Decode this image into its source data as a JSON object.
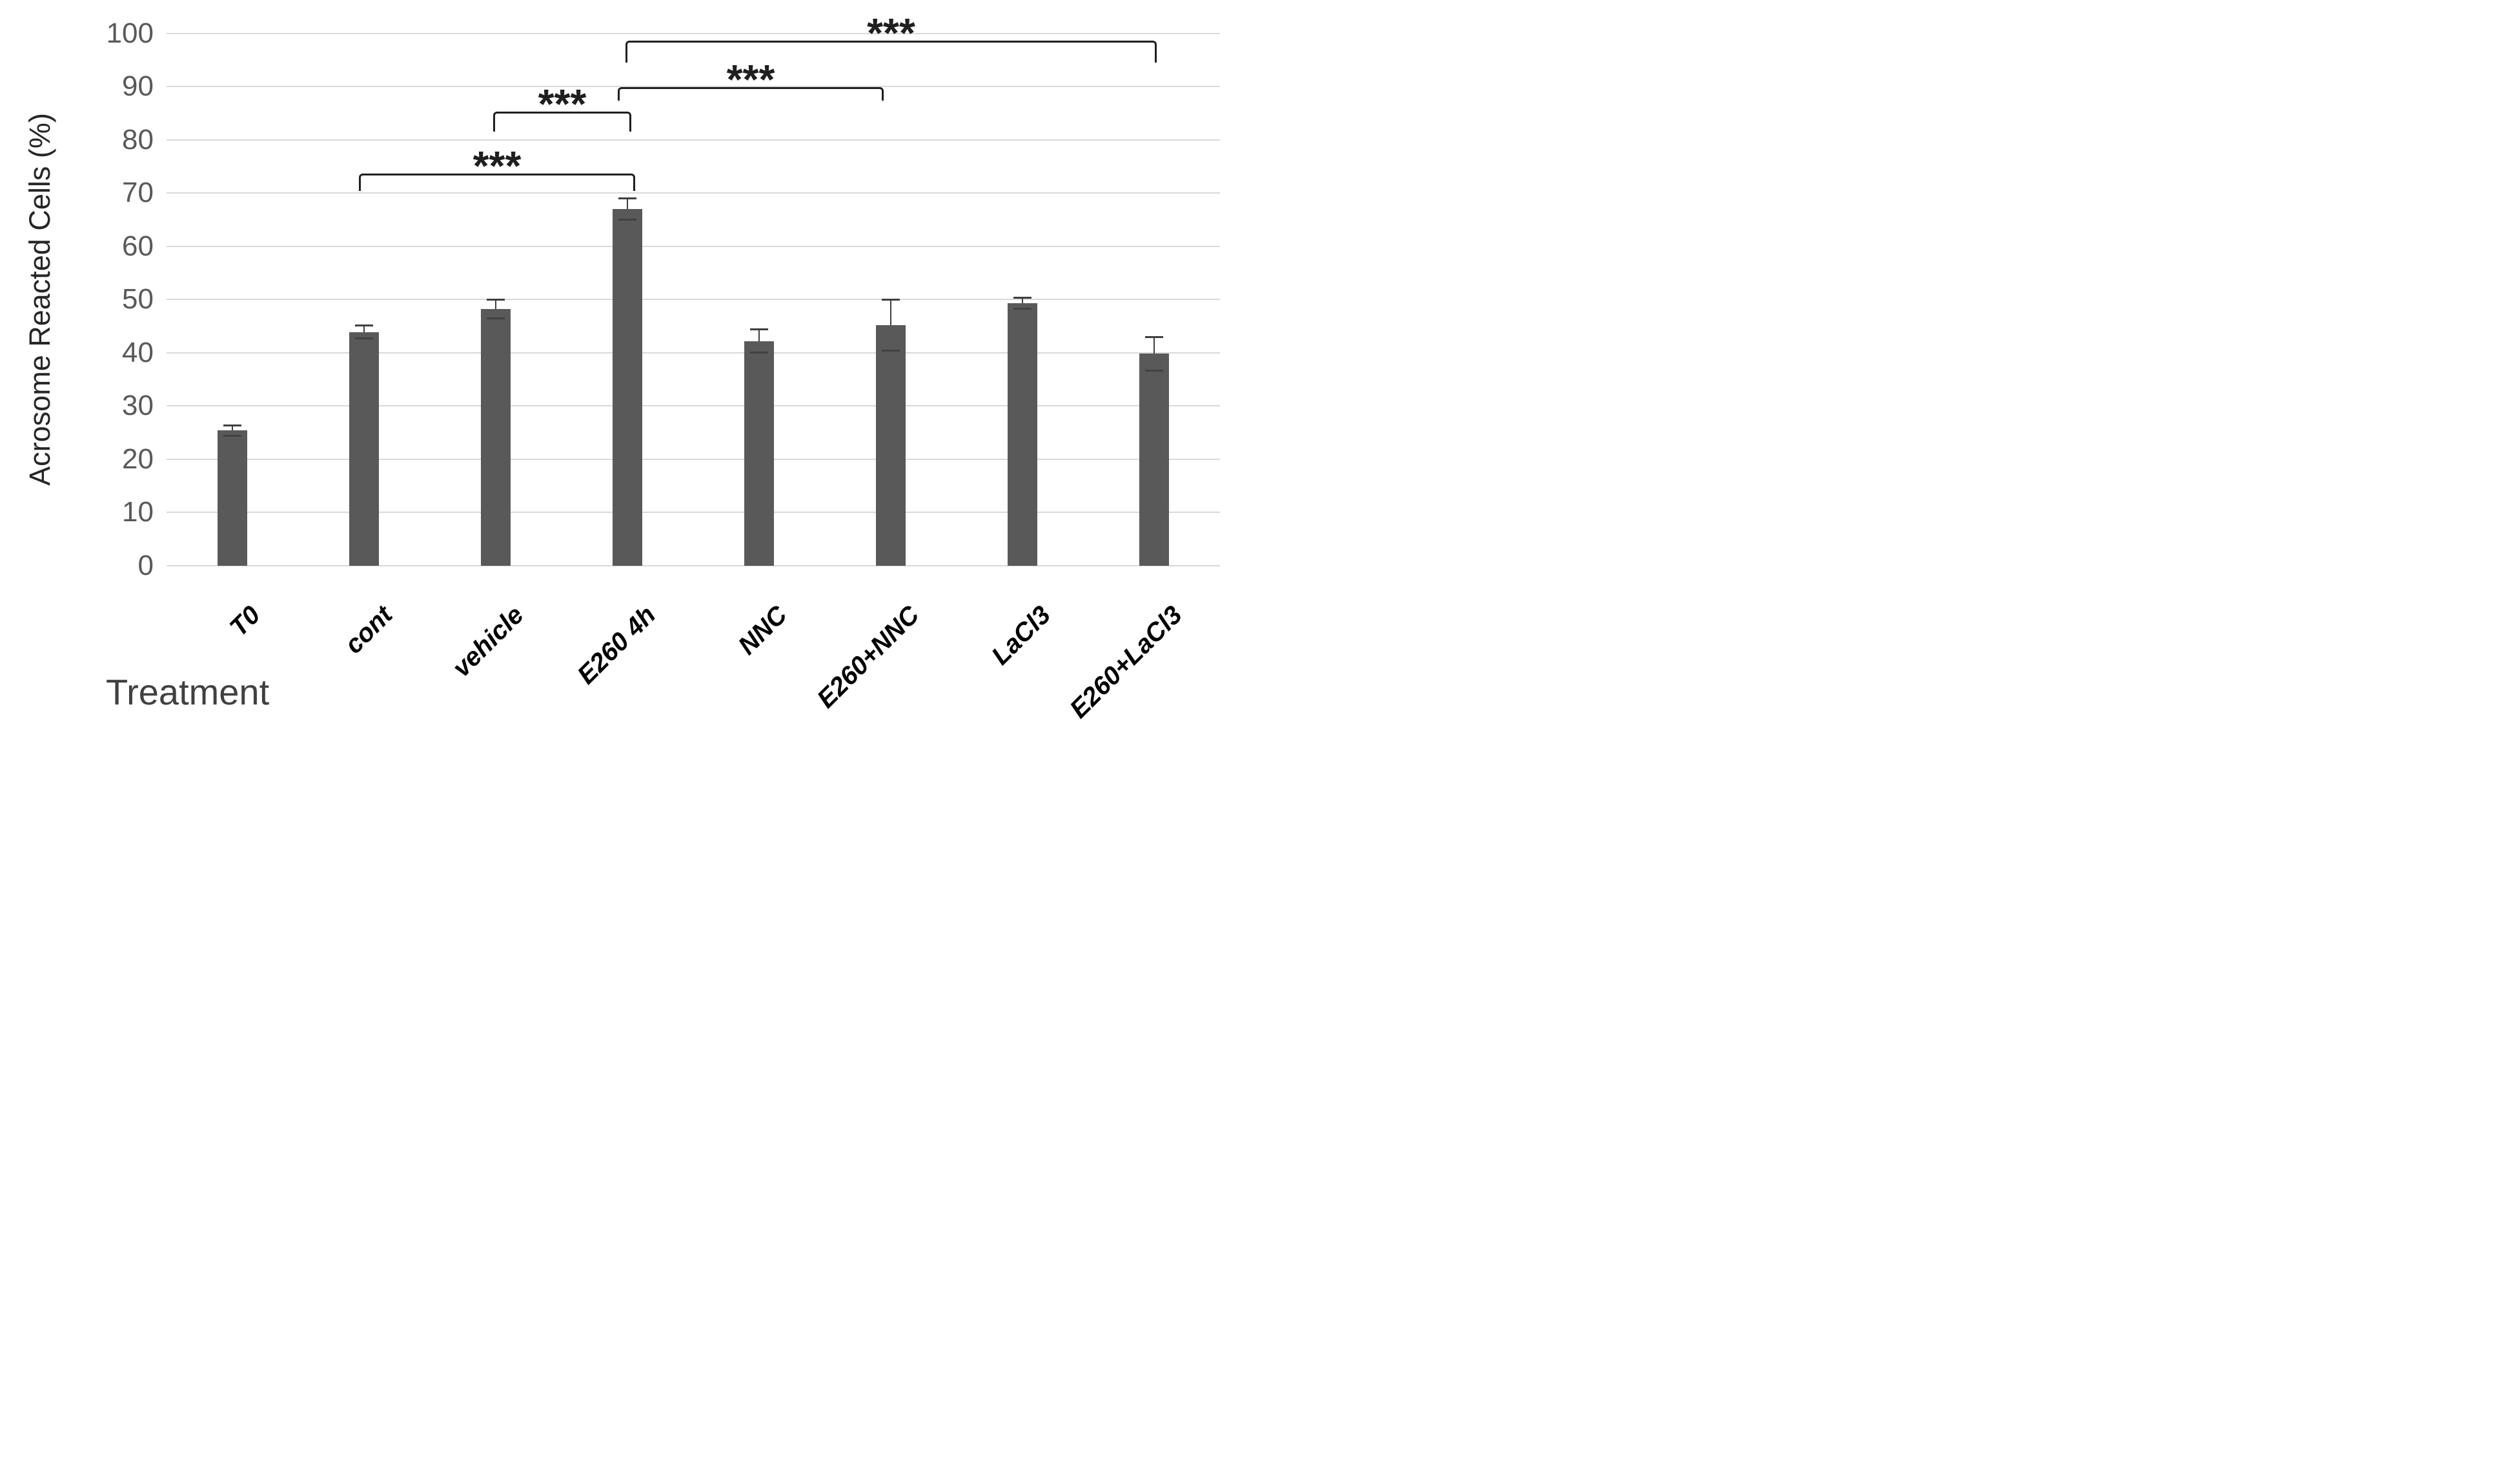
{
  "chart_data": {
    "type": "bar",
    "title": "",
    "ylabel": "Acrosome Reacted Cells (%)",
    "xlabel": "Treatment",
    "categories": [
      "T0",
      "cont",
      "vehicle",
      "E260 4h",
      "NNC",
      "E260+NNC",
      "LaCl3",
      "E260+LaCl3"
    ],
    "values": [
      25.4,
      43.9,
      48.2,
      67.0,
      42.2,
      45.2,
      49.3,
      39.8
    ],
    "errors_plus": [
      1.0,
      1.2,
      1.8,
      2.0,
      2.2,
      4.8,
      1.0,
      3.1
    ],
    "errors_minus": [
      1.0,
      1.2,
      1.8,
      2.0,
      2.2,
      4.8,
      1.0,
      3.1
    ],
    "ylim": [
      0,
      100
    ],
    "ytick_step": 10,
    "ytick_labels": [
      "0",
      "10",
      "20",
      "30",
      "40",
      "50",
      "60",
      "70",
      "80",
      "90",
      "100"
    ],
    "grid": true,
    "legend": false,
    "bar_color": "#595959",
    "gridline_color": "#d9d9d9",
    "error_bar_color": "#3f3f3f",
    "annotation_color": "#1f1f1f",
    "tick_label_color": "#595959",
    "axis_title_color": "#262626",
    "category_label_color": "#000000",
    "significance_brackets": [
      {
        "group1": "cont",
        "group2": "E260 4h",
        "label": "***",
        "y": 73.7,
        "tick_drop": 3.3
      },
      {
        "group1": "vehicle",
        "group2": "E260 4h",
        "label": "***",
        "y": 85.3,
        "tick_drop": 3.8
      },
      {
        "group1": "E260 4h",
        "group2": "E260+NNC",
        "label": "***",
        "y": 89.9,
        "tick_drop": 2.5
      },
      {
        "group1": "E260 4h",
        "group2": "E260+LaCl3",
        "label": "***",
        "y": 98.6,
        "tick_drop": 4.1
      }
    ]
  }
}
